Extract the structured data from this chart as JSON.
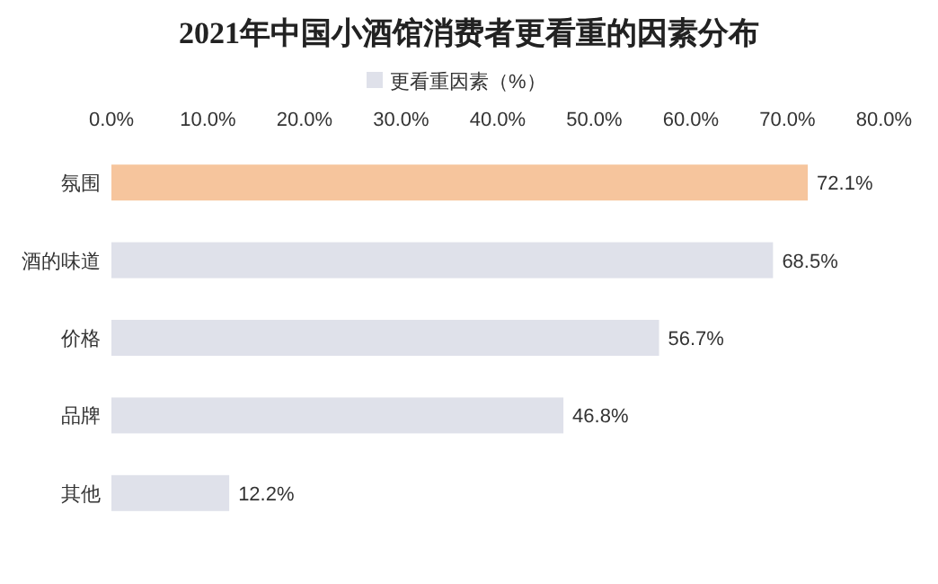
{
  "chart_data": {
    "type": "bar",
    "orientation": "horizontal",
    "title": "2021年中国小酒馆消费者更看重的因素分布",
    "categories": [
      "氛围",
      "酒的味道",
      "价格",
      "品牌",
      "其他"
    ],
    "series": [
      {
        "name": "更看重因素（%）",
        "color": "#dfe1ea",
        "colors": [
          "#f6c59d",
          "#dfe1ea",
          "#dfe1ea",
          "#dfe1ea",
          "#dfe1ea"
        ],
        "values": [
          72.1,
          68.5,
          56.7,
          46.8,
          12.2
        ],
        "value_labels": [
          "72.1%",
          "68.5%",
          "56.7%",
          "46.8%",
          "12.2%"
        ]
      }
    ],
    "xlim": [
      0,
      80
    ],
    "xticks": [
      {
        "value": 0,
        "label": "0.0%"
      },
      {
        "value": 10,
        "label": "10.0%"
      },
      {
        "value": 20,
        "label": "20.0%"
      },
      {
        "value": 30,
        "label": "30.0%"
      },
      {
        "value": 40,
        "label": "40.0%"
      },
      {
        "value": 50,
        "label": "50.0%"
      },
      {
        "value": 60,
        "label": "60.0%"
      },
      {
        "value": 70,
        "label": "70.0%"
      },
      {
        "value": 80,
        "label": "80.0%"
      }
    ],
    "legend": "top",
    "grid": false
  }
}
